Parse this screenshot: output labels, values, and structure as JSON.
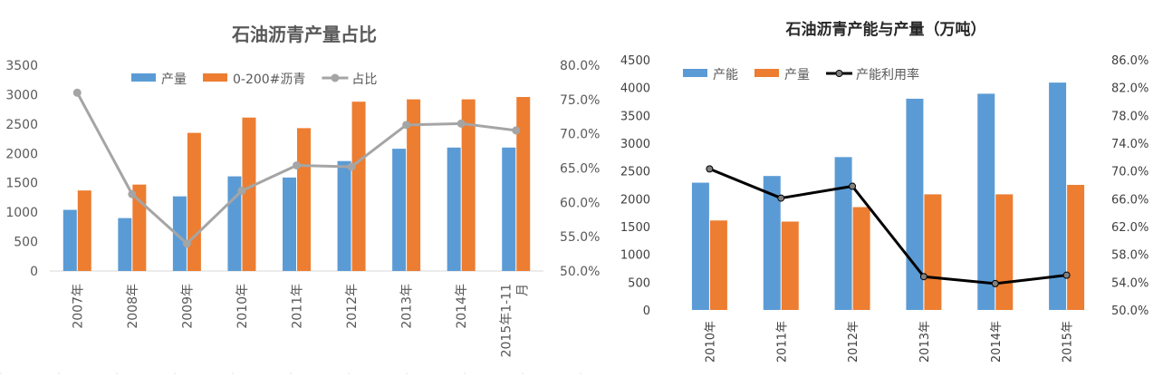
{
  "charts": [
    {
      "id": "left",
      "chart_data": {
        "type": "bar",
        "title": "石油沥青产量占比",
        "categories": [
          "2007年",
          "2008年",
          "2009年",
          "2010年",
          "2011年",
          "2012年",
          "2013年",
          "2014年",
          "2015年1-11月"
        ],
        "series": [
          {
            "name": "产量",
            "kind": "bar",
            "color": "#5B9BD5",
            "axis": "left",
            "values": [
              1040,
              900,
              1270,
              1610,
              1590,
              1870,
              2080,
              2100,
              2100
            ]
          },
          {
            "name": "0-200#沥青",
            "kind": "bar",
            "color": "#ED7D31",
            "axis": "left",
            "values": [
              1370,
              1470,
              2350,
              2610,
              2430,
              2880,
              2920,
              2920,
              2960
            ]
          },
          {
            "name": "占比",
            "kind": "line",
            "color": "#A5A5A5",
            "axis": "right",
            "values": [
              0.76,
              0.612,
              0.54,
              0.617,
              0.654,
              0.652,
              0.713,
              0.715,
              0.705
            ]
          }
        ],
        "ylim": [
          0,
          3500
        ],
        "y_ticks": [
          "0",
          "500",
          "1000",
          "1500",
          "2000",
          "2500",
          "3000",
          "3500"
        ],
        "y2lim": [
          0.5,
          0.8
        ],
        "y2_ticks": [
          "50.0%",
          "55.0%",
          "60.0%",
          "65.0%",
          "70.0%",
          "75.0%",
          "80.0%"
        ],
        "legend_position": "top",
        "grid": false
      }
    },
    {
      "id": "right",
      "chart_data": {
        "type": "bar",
        "title": "石油沥青产能与产量（万吨）",
        "categories": [
          "2010年",
          "2011年",
          "2012年",
          "2013年",
          "2014年",
          "2015年"
        ],
        "series": [
          {
            "name": "产能",
            "kind": "bar",
            "color": "#5B9BD5",
            "axis": "left",
            "values": [
              2290,
              2410,
              2750,
              3800,
              3890,
              4090
            ]
          },
          {
            "name": "产量",
            "kind": "bar",
            "color": "#ED7D31",
            "axis": "left",
            "values": [
              1610,
              1590,
              1850,
              2080,
              2080,
              2250
            ]
          },
          {
            "name": "产能利用率",
            "kind": "line",
            "color": "#000000",
            "axis": "right",
            "values": [
              0.703,
              0.661,
              0.678,
              0.548,
              0.538,
              0.55
            ]
          }
        ],
        "ylim": [
          0,
          4500
        ],
        "y_ticks": [
          "0",
          "500",
          "1000",
          "1500",
          "2000",
          "2500",
          "3000",
          "3500",
          "4000",
          "4500"
        ],
        "y2lim": [
          0.5,
          0.86
        ],
        "y2_ticks": [
          "50.0%",
          "54.0%",
          "58.0%",
          "62.0%",
          "66.0%",
          "70.0%",
          "74.0%",
          "78.0%",
          "82.0%",
          "86.0%"
        ],
        "legend_position": "top",
        "grid": false
      }
    }
  ]
}
